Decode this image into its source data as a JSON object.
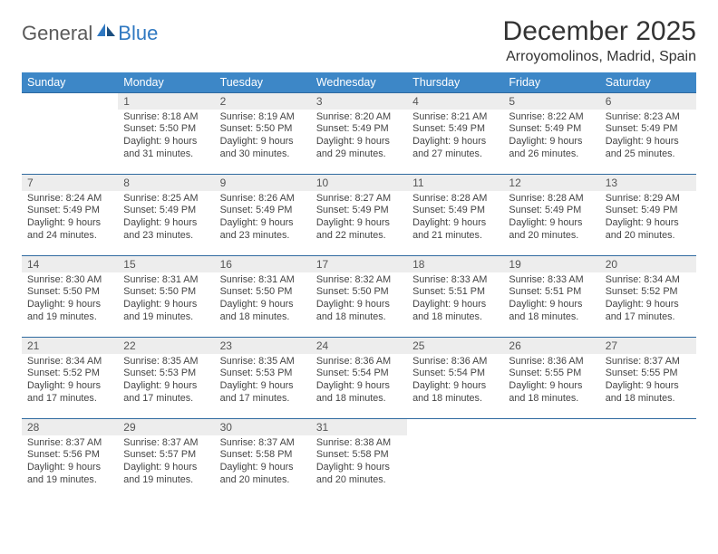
{
  "logo": {
    "general": "General",
    "blue": "Blue"
  },
  "title": "December 2025",
  "location": "Arroyomolinos, Madrid, Spain",
  "colors": {
    "header_bg": "#3d87c7",
    "header_text": "#ffffff",
    "daynum_bg": "#ededed",
    "row_border": "#2f6aa0",
    "logo_gray": "#5a5a5a",
    "logo_blue": "#2f78c1"
  },
  "weekdays": [
    "Sunday",
    "Monday",
    "Tuesday",
    "Wednesday",
    "Thursday",
    "Friday",
    "Saturday"
  ],
  "weeks": [
    {
      "nums": [
        "",
        "1",
        "2",
        "3",
        "4",
        "5",
        "6"
      ],
      "cells": [
        null,
        {
          "sunrise": "Sunrise: 8:18 AM",
          "sunset": "Sunset: 5:50 PM",
          "daylight": "Daylight: 9 hours and 31 minutes."
        },
        {
          "sunrise": "Sunrise: 8:19 AM",
          "sunset": "Sunset: 5:50 PM",
          "daylight": "Daylight: 9 hours and 30 minutes."
        },
        {
          "sunrise": "Sunrise: 8:20 AM",
          "sunset": "Sunset: 5:49 PM",
          "daylight": "Daylight: 9 hours and 29 minutes."
        },
        {
          "sunrise": "Sunrise: 8:21 AM",
          "sunset": "Sunset: 5:49 PM",
          "daylight": "Daylight: 9 hours and 27 minutes."
        },
        {
          "sunrise": "Sunrise: 8:22 AM",
          "sunset": "Sunset: 5:49 PM",
          "daylight": "Daylight: 9 hours and 26 minutes."
        },
        {
          "sunrise": "Sunrise: 8:23 AM",
          "sunset": "Sunset: 5:49 PM",
          "daylight": "Daylight: 9 hours and 25 minutes."
        }
      ]
    },
    {
      "nums": [
        "7",
        "8",
        "9",
        "10",
        "11",
        "12",
        "13"
      ],
      "cells": [
        {
          "sunrise": "Sunrise: 8:24 AM",
          "sunset": "Sunset: 5:49 PM",
          "daylight": "Daylight: 9 hours and 24 minutes."
        },
        {
          "sunrise": "Sunrise: 8:25 AM",
          "sunset": "Sunset: 5:49 PM",
          "daylight": "Daylight: 9 hours and 23 minutes."
        },
        {
          "sunrise": "Sunrise: 8:26 AM",
          "sunset": "Sunset: 5:49 PM",
          "daylight": "Daylight: 9 hours and 23 minutes."
        },
        {
          "sunrise": "Sunrise: 8:27 AM",
          "sunset": "Sunset: 5:49 PM",
          "daylight": "Daylight: 9 hours and 22 minutes."
        },
        {
          "sunrise": "Sunrise: 8:28 AM",
          "sunset": "Sunset: 5:49 PM",
          "daylight": "Daylight: 9 hours and 21 minutes."
        },
        {
          "sunrise": "Sunrise: 8:28 AM",
          "sunset": "Sunset: 5:49 PM",
          "daylight": "Daylight: 9 hours and 20 minutes."
        },
        {
          "sunrise": "Sunrise: 8:29 AM",
          "sunset": "Sunset: 5:49 PM",
          "daylight": "Daylight: 9 hours and 20 minutes."
        }
      ]
    },
    {
      "nums": [
        "14",
        "15",
        "16",
        "17",
        "18",
        "19",
        "20"
      ],
      "cells": [
        {
          "sunrise": "Sunrise: 8:30 AM",
          "sunset": "Sunset: 5:50 PM",
          "daylight": "Daylight: 9 hours and 19 minutes."
        },
        {
          "sunrise": "Sunrise: 8:31 AM",
          "sunset": "Sunset: 5:50 PM",
          "daylight": "Daylight: 9 hours and 19 minutes."
        },
        {
          "sunrise": "Sunrise: 8:31 AM",
          "sunset": "Sunset: 5:50 PM",
          "daylight": "Daylight: 9 hours and 18 minutes."
        },
        {
          "sunrise": "Sunrise: 8:32 AM",
          "sunset": "Sunset: 5:50 PM",
          "daylight": "Daylight: 9 hours and 18 minutes."
        },
        {
          "sunrise": "Sunrise: 8:33 AM",
          "sunset": "Sunset: 5:51 PM",
          "daylight": "Daylight: 9 hours and 18 minutes."
        },
        {
          "sunrise": "Sunrise: 8:33 AM",
          "sunset": "Sunset: 5:51 PM",
          "daylight": "Daylight: 9 hours and 18 minutes."
        },
        {
          "sunrise": "Sunrise: 8:34 AM",
          "sunset": "Sunset: 5:52 PM",
          "daylight": "Daylight: 9 hours and 17 minutes."
        }
      ]
    },
    {
      "nums": [
        "21",
        "22",
        "23",
        "24",
        "25",
        "26",
        "27"
      ],
      "cells": [
        {
          "sunrise": "Sunrise: 8:34 AM",
          "sunset": "Sunset: 5:52 PM",
          "daylight": "Daylight: 9 hours and 17 minutes."
        },
        {
          "sunrise": "Sunrise: 8:35 AM",
          "sunset": "Sunset: 5:53 PM",
          "daylight": "Daylight: 9 hours and 17 minutes."
        },
        {
          "sunrise": "Sunrise: 8:35 AM",
          "sunset": "Sunset: 5:53 PM",
          "daylight": "Daylight: 9 hours and 17 minutes."
        },
        {
          "sunrise": "Sunrise: 8:36 AM",
          "sunset": "Sunset: 5:54 PM",
          "daylight": "Daylight: 9 hours and 18 minutes."
        },
        {
          "sunrise": "Sunrise: 8:36 AM",
          "sunset": "Sunset: 5:54 PM",
          "daylight": "Daylight: 9 hours and 18 minutes."
        },
        {
          "sunrise": "Sunrise: 8:36 AM",
          "sunset": "Sunset: 5:55 PM",
          "daylight": "Daylight: 9 hours and 18 minutes."
        },
        {
          "sunrise": "Sunrise: 8:37 AM",
          "sunset": "Sunset: 5:55 PM",
          "daylight": "Daylight: 9 hours and 18 minutes."
        }
      ]
    },
    {
      "nums": [
        "28",
        "29",
        "30",
        "31",
        "",
        "",
        ""
      ],
      "cells": [
        {
          "sunrise": "Sunrise: 8:37 AM",
          "sunset": "Sunset: 5:56 PM",
          "daylight": "Daylight: 9 hours and 19 minutes."
        },
        {
          "sunrise": "Sunrise: 8:37 AM",
          "sunset": "Sunset: 5:57 PM",
          "daylight": "Daylight: 9 hours and 19 minutes."
        },
        {
          "sunrise": "Sunrise: 8:37 AM",
          "sunset": "Sunset: 5:58 PM",
          "daylight": "Daylight: 9 hours and 20 minutes."
        },
        {
          "sunrise": "Sunrise: 8:38 AM",
          "sunset": "Sunset: 5:58 PM",
          "daylight": "Daylight: 9 hours and 20 minutes."
        },
        null,
        null,
        null
      ]
    }
  ]
}
